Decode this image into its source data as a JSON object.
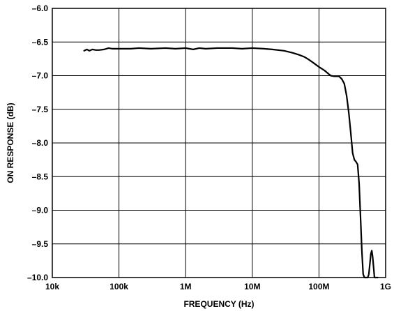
{
  "chart_data": {
    "type": "line",
    "title": "",
    "xlabel": "FREQUENCY (Hz)",
    "ylabel": "ON RESPONSE (dB)",
    "x_scale": "log",
    "xlim": [
      10000,
      1000000000
    ],
    "ylim": [
      -10.0,
      -6.0
    ],
    "x_ticks": [
      {
        "value": 10000,
        "label": "10k"
      },
      {
        "value": 100000,
        "label": "100k"
      },
      {
        "value": 1000000,
        "label": "1M"
      },
      {
        "value": 10000000,
        "label": "10M"
      },
      {
        "value": 100000000,
        "label": "100M"
      },
      {
        "value": 1000000000,
        "label": "1G"
      }
    ],
    "y_ticks": [
      {
        "value": -6.0,
        "label": "–6.0"
      },
      {
        "value": -6.5,
        "label": "–6.5"
      },
      {
        "value": -7.0,
        "label": "–7.0"
      },
      {
        "value": -7.5,
        "label": "–7.5"
      },
      {
        "value": -8.0,
        "label": "–8.0"
      },
      {
        "value": -8.5,
        "label": "–8.5"
      },
      {
        "value": -9.0,
        "label": "–9.0"
      },
      {
        "value": -9.5,
        "label": "–9.5"
      },
      {
        "value": -10.0,
        "label": "–10.0"
      }
    ],
    "grid": true,
    "color": "#000000",
    "series": [
      {
        "x": [
          30000,
          33000,
          36000,
          40000,
          45000,
          50000,
          60000,
          70000,
          80000,
          100000,
          150000,
          200000,
          300000,
          500000,
          700000,
          1000000,
          1300000,
          1600000,
          2000000,
          3000000,
          5000000,
          7000000,
          10000000,
          15000000,
          20000000,
          30000000,
          40000000,
          50000000,
          60000000,
          70000000,
          80000000,
          100000000,
          120000000,
          150000000,
          170000000,
          200000000,
          220000000,
          240000000,
          260000000,
          280000000,
          300000000,
          320000000,
          340000000,
          360000000,
          380000000,
          400000000,
          420000000,
          440000000,
          460000000,
          480000000,
          500000000,
          520000000,
          540000000,
          560000000,
          580000000,
          600000000,
          620000000,
          640000000,
          660000000,
          680000000,
          700000000,
          720000000,
          740000000,
          760000000
        ],
        "y": [
          -6.63,
          -6.61,
          -6.63,
          -6.61,
          -6.62,
          -6.62,
          -6.61,
          -6.59,
          -6.6,
          -6.6,
          -6.6,
          -6.59,
          -6.6,
          -6.59,
          -6.6,
          -6.59,
          -6.61,
          -6.59,
          -6.6,
          -6.59,
          -6.59,
          -6.6,
          -6.59,
          -6.6,
          -6.61,
          -6.63,
          -6.66,
          -6.69,
          -6.72,
          -6.76,
          -6.8,
          -6.87,
          -6.92,
          -7.0,
          -7.01,
          -7.01,
          -7.05,
          -7.12,
          -7.3,
          -7.55,
          -7.85,
          -8.15,
          -8.25,
          -8.28,
          -8.32,
          -8.6,
          -9.1,
          -9.6,
          -9.95,
          -10.0,
          -10.0,
          -10.0,
          -10.0,
          -9.95,
          -9.8,
          -9.65,
          -9.6,
          -9.7,
          -9.85,
          -10.0,
          -10.0,
          -10.0,
          -10.0,
          -10.0
        ]
      }
    ]
  }
}
